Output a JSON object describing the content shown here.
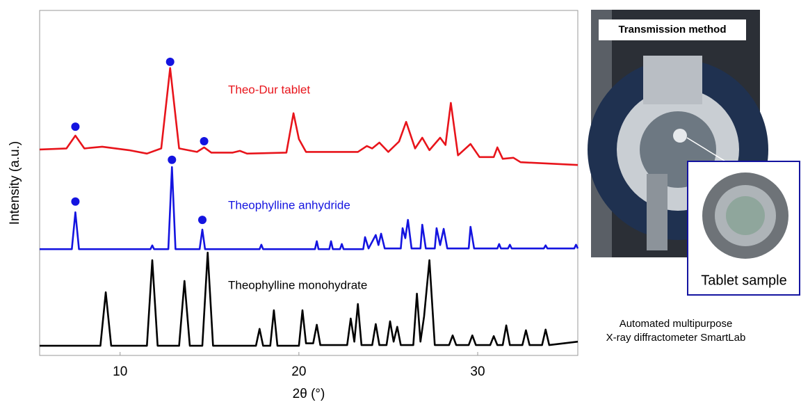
{
  "chart_data": {
    "type": "line",
    "xlabel": "2θ (°)",
    "ylabel": "Intensity (a.u.)",
    "xlim": [
      5.5,
      35.6
    ],
    "ylim": [
      0,
      100
    ],
    "xticks": [
      10,
      20,
      30
    ],
    "series": [
      {
        "name": "Theo-Dur tablet",
        "color": "#e8141b",
        "x": [
          5.5,
          7.0,
          7.5,
          8.0,
          9.0,
          10.5,
          11.5,
          12.3,
          12.8,
          13.3,
          14.3,
          14.7,
          15.1,
          16.3,
          16.7,
          17.1,
          19.3,
          19.7,
          20.0,
          20.4,
          23.3,
          23.8,
          24.1,
          24.5,
          25.0,
          25.6,
          26.0,
          26.5,
          26.9,
          27.3,
          27.9,
          28.2,
          28.5,
          28.9,
          29.6,
          30.1,
          30.9,
          31.1,
          31.4,
          32.0,
          32.4,
          35.6
        ],
        "values": [
          59.7,
          60,
          63.7,
          60,
          60.5,
          59.5,
          58.5,
          60,
          83.3,
          60,
          59,
          60.3,
          58.8,
          58.8,
          59.3,
          58.5,
          58.8,
          70.2,
          62.7,
          59,
          59,
          60.7,
          60,
          61.7,
          59,
          62,
          67.7,
          60,
          63.1,
          59.5,
          63.1,
          61,
          73.2,
          58,
          61.3,
          57.5,
          57.5,
          60.3,
          57,
          57.3,
          56,
          55.2
        ]
      },
      {
        "name": "Theophylline anhydride",
        "color": "#1414e0",
        "x": [
          5.5,
          7.3,
          7.5,
          7.7,
          11.7,
          11.8,
          11.9,
          12.7,
          12.9,
          13.1,
          14.45,
          14.6,
          14.75,
          17.8,
          17.9,
          18.0,
          20.9,
          21.0,
          21.1,
          21.7,
          21.8,
          21.9,
          22.3,
          22.4,
          22.5,
          23.6,
          23.7,
          23.9,
          24.3,
          24.45,
          24.6,
          24.8,
          25.7,
          25.8,
          25.95,
          26.1,
          26.3,
          26.8,
          26.9,
          27.1,
          27.6,
          27.7,
          27.9,
          28.1,
          28.3,
          29.5,
          29.6,
          29.8,
          31.1,
          31.2,
          31.3,
          31.7,
          31.8,
          31.9,
          33.7,
          33.8,
          33.9,
          35.4,
          35.5,
          35.6
        ],
        "values": [
          30.8,
          30.8,
          41.5,
          30.8,
          30.8,
          31.9,
          30.8,
          30.8,
          54.6,
          30.8,
          30.8,
          36.5,
          30.8,
          30.8,
          32.1,
          30.8,
          30.8,
          33.1,
          30.8,
          30.8,
          33.1,
          30.8,
          30.8,
          32.3,
          30.8,
          30.8,
          34.3,
          31,
          34.9,
          32,
          35.3,
          31,
          31,
          36.9,
          34,
          39.3,
          31,
          31,
          37.9,
          31,
          31,
          36.9,
          32,
          36.7,
          31,
          31,
          37.3,
          31,
          31,
          32.3,
          31,
          31,
          32.1,
          31,
          31,
          31.9,
          31,
          31,
          32.1,
          31
        ]
      },
      {
        "name": "Theophylline monohydrate",
        "color": "#000000",
        "x": [
          5.5,
          8.9,
          9.2,
          9.5,
          11.5,
          11.8,
          12.1,
          13.3,
          13.6,
          13.9,
          14.6,
          14.9,
          15.2,
          17.6,
          17.8,
          18.0,
          18.4,
          18.6,
          18.8,
          20.0,
          20.2,
          20.4,
          20.8,
          21.0,
          21.2,
          22.7,
          22.9,
          23.1,
          23.3,
          23.5,
          24.1,
          24.3,
          24.5,
          24.9,
          25.1,
          25.3,
          25.5,
          25.7,
          26.4,
          26.6,
          26.8,
          27.0,
          27.3,
          27.6,
          28.4,
          28.6,
          28.8,
          29.5,
          29.7,
          29.9,
          30.7,
          30.9,
          31.1,
          31.4,
          31.6,
          31.8,
          32.5,
          32.7,
          32.9,
          33.6,
          33.8,
          34.0,
          35.6
        ],
        "values": [
          2.8,
          2.8,
          18.3,
          2.8,
          2.8,
          27.6,
          2.8,
          2.8,
          21.6,
          2.8,
          2.8,
          29.8,
          2.8,
          2.8,
          7.7,
          2.8,
          2.8,
          13.1,
          2.8,
          2.8,
          13.1,
          3.5,
          3.5,
          8.9,
          3,
          3,
          10.7,
          4,
          14.9,
          3,
          3,
          9.1,
          3,
          3,
          9.9,
          4,
          8.3,
          3,
          3,
          17.9,
          4,
          11.3,
          27.6,
          3,
          3,
          5.8,
          3,
          3,
          5.8,
          3,
          3,
          5.6,
          3,
          3,
          8.7,
          3,
          3,
          7.3,
          3,
          3,
          7.5,
          3,
          4
        ]
      }
    ],
    "markers": {
      "color": "#1414e0",
      "x": [
        7.5,
        12.8,
        14.7,
        7.5,
        12.9,
        14.6
      ],
      "y": [
        66.3,
        85.1,
        62.1,
        44.6,
        56.7,
        39.3
      ]
    },
    "annotations": [
      "Transmission method",
      "Tablet sample",
      "Automated multipurpose",
      "X-ray diffractometer SmartLab"
    ]
  }
}
